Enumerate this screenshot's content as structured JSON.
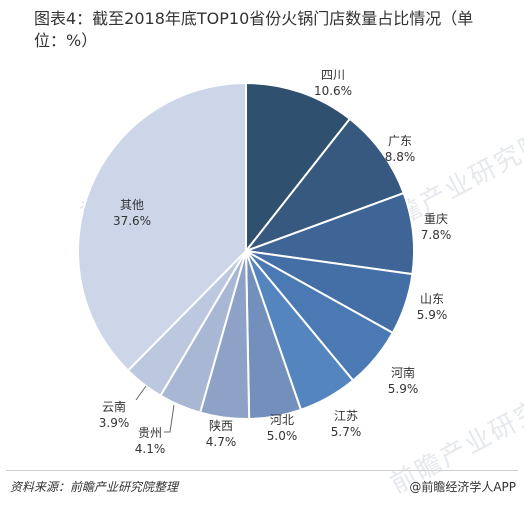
{
  "title": "图表4：截至2018年底TOP10省份火锅门店数量占比情况（单位：%）",
  "source": "资料来源：前瞻产业研究院整理",
  "brand": "@前瞻经济学人APP",
  "watermark": "前瞻产业研究院",
  "chart_data": {
    "type": "pie",
    "title": "图表4：截至2018年底TOP10省份火锅门店数量占比情况（单位：%）",
    "unit": "%",
    "slices": [
      {
        "label": "四川",
        "value": 10.6,
        "value_text": "10.6%",
        "color": "#30506f"
      },
      {
        "label": "广东",
        "value": 8.8,
        "value_text": "8.8%",
        "color": "#38597f"
      },
      {
        "label": "重庆",
        "value": 7.8,
        "value_text": "7.8%",
        "color": "#3e6596"
      },
      {
        "label": "山东",
        "value": 5.9,
        "value_text": "5.9%",
        "color": "#436ea6"
      },
      {
        "label": "河南",
        "value": 5.9,
        "value_text": "5.9%",
        "color": "#4b79b3"
      },
      {
        "label": "江苏",
        "value": 5.7,
        "value_text": "5.7%",
        "color": "#5585be"
      },
      {
        "label": "河北",
        "value": 5.0,
        "value_text": "5.0%",
        "color": "#7390bd"
      },
      {
        "label": "陕西",
        "value": 4.7,
        "value_text": "4.7%",
        "color": "#8ea2c7"
      },
      {
        "label": "贵州",
        "value": 4.1,
        "value_text": "4.1%",
        "color": "#a7b7d4"
      },
      {
        "label": "云南",
        "value": 3.9,
        "value_text": "3.9%",
        "color": "#bcc8df"
      },
      {
        "label": "其他",
        "value": 37.6,
        "value_text": "37.6%",
        "color": "#cdd6e8"
      }
    ]
  }
}
